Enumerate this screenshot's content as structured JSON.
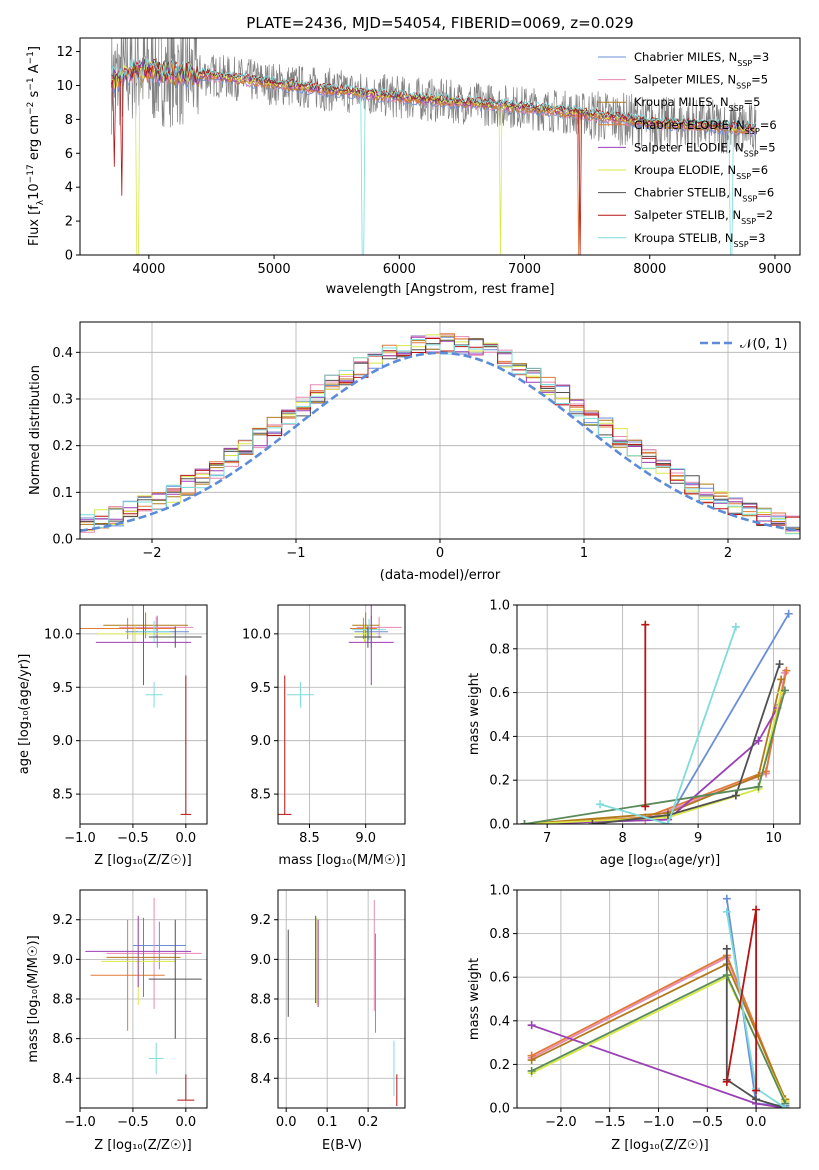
{
  "colors": {
    "chabrier_miles": "#6b8fd6",
    "salpeter_miles": "#e88ab4",
    "kroupa_miles": "#e07b39",
    "chabrier_elodie": "#e07b39",
    "salpeter_elodie": "#9b3fb5",
    "kroupa_elodie": "#d8e84a",
    "chabrier_stelib": "#505050",
    "salpeter_stelib": "#b81414",
    "kroupa_stelib": "#7fdcdc",
    "data": "#808080",
    "gauss": "#5b8bd9"
  },
  "chart_data": [
    {
      "id": "spectrum",
      "type": "line",
      "title": "PLATE=2436, MJD=54054, FIBERID=0069, z=0.029",
      "xlabel": "wavelength [Angstrom, rest frame]",
      "ylabel_parts": [
        "Flux [f",
        "λ",
        "10",
        "−17",
        " erg cm",
        "−2",
        " s",
        "−1",
        " A",
        "−1",
        "]"
      ],
      "xlim": [
        3450,
        9200
      ],
      "ylim": [
        0,
        12.8
      ],
      "xticks": [
        "4000",
        "5000",
        "6000",
        "7000",
        "8000",
        "9000"
      ],
      "yticks": [
        "0",
        "2",
        "4",
        "6",
        "8",
        "10",
        "12"
      ],
      "continuum": {
        "x": [
          3700,
          3800,
          3900,
          4000,
          4200,
          4500,
          5000,
          5500,
          6000,
          6500,
          7000,
          7500,
          8000,
          8500,
          8850
        ],
        "y": [
          10.3,
          10.6,
          11.0,
          10.8,
          10.7,
          10.6,
          10.1,
          9.7,
          9.3,
          9.0,
          8.7,
          8.3,
          7.8,
          7.6,
          7.4
        ]
      },
      "legend": [
        {
          "label": "Chabrier MILES, N",
          "sub": "SSP",
          "val": "=3",
          "color": "#6b8fd6"
        },
        {
          "label": "Salpeter MILES, N",
          "sub": "SSP",
          "val": "=5",
          "color": "#e88ab4"
        },
        {
          "label": "Kroupa MILES, N",
          "sub": "SSP",
          "val": "=5",
          "color": "#b07a1a"
        },
        {
          "label": "Chabrier ELODIE, N",
          "sub": "SSP",
          "val": "=6",
          "color": "#e07b39"
        },
        {
          "label": "Salpeter ELODIE, N",
          "sub": "SSP",
          "val": "=5",
          "color": "#9b3fb5"
        },
        {
          "label": "Kroupa ELODIE, N",
          "sub": "SSP",
          "val": "=6",
          "color": "#d8e84a"
        },
        {
          "label": "Chabrier STELIB, N",
          "sub": "SSP",
          "val": "=6",
          "color": "#505050"
        },
        {
          "label": "Salpeter STELIB, N",
          "sub": "SSP",
          "val": "=2",
          "color": "#b81414"
        },
        {
          "label": "Kroupa STELIB, N",
          "sub": "SSP",
          "val": "=3",
          "color": "#7fdcdc"
        }
      ]
    },
    {
      "id": "residuals",
      "type": "line",
      "xlabel": "(data-model)/error",
      "ylabel": "Normed distribution",
      "xlim": [
        -2.5,
        2.5
      ],
      "ylim": [
        0,
        0.465
      ],
      "xticks": [
        "−2",
        "−1",
        "0",
        "1",
        "2"
      ],
      "yticks": [
        "0.0",
        "0.1",
        "0.2",
        "0.3",
        "0.4"
      ],
      "legend_label": "𝒩(0, 1)"
    },
    {
      "id": "age_vs_Z",
      "type": "scatter",
      "xlabel": "Z [log₁₀(Z/Z☉)]",
      "ylabel": "age  [log₁₀(age/yr)]",
      "xlim": [
        -1.0,
        0.2
      ],
      "ylim": [
        8.22,
        10.27
      ],
      "xticks": [
        "−1.0",
        "−0.5",
        "0.0"
      ],
      "yticks": [
        "8.5",
        "9.0",
        "9.5",
        "10.0"
      ],
      "points": [
        {
          "x": -0.27,
          "y": 10.02,
          "xe": 0.3,
          "ye": 0.15,
          "c": "#6b8fd6"
        },
        {
          "x": -0.28,
          "y": 10.06,
          "xe": 0.35,
          "ye": 0.1,
          "c": "#e88ab4"
        },
        {
          "x": -0.55,
          "y": 10.05,
          "xe": 0.45,
          "ye": 0.1,
          "c": "#e07b39"
        },
        {
          "x": -0.38,
          "y": 10.08,
          "xe": 0.4,
          "ye": 0.12,
          "c": "#b07a1a"
        },
        {
          "x": -0.48,
          "y": 10.0,
          "xe": 0.35,
          "ye": 0.08,
          "c": "#d8e84a"
        },
        {
          "x": -0.3,
          "y": 10.02,
          "xe": 0.15,
          "ye": 0.1,
          "c": "#7fdcdc"
        },
        {
          "x": -0.4,
          "y": 9.92,
          "xe": 0.45,
          "ye": 0.4,
          "c": "#9b3fb5"
        },
        {
          "x": -0.1,
          "y": 9.97,
          "xe": 0.25,
          "ye": 0.1,
          "c": "#505050"
        },
        {
          "x": -0.3,
          "y": 9.43,
          "xe": 0.08,
          "ye": 0.12,
          "c": "#7fdcdc"
        },
        {
          "x": 0.0,
          "y": 8.31,
          "xe": 0.05,
          "ye": 0.0,
          "yup": 1.3,
          "c": "#b81414"
        }
      ]
    },
    {
      "id": "age_vs_mass",
      "type": "scatter",
      "xlabel": "mass [log₁₀(M/M☉)]",
      "ylabel": "",
      "xlim": [
        8.22,
        9.35
      ],
      "ylim": [
        8.22,
        10.27
      ],
      "xticks": [
        "8.5",
        "9.0"
      ],
      "yticks": [
        "8.5",
        "9.0",
        "9.5",
        "10.0"
      ],
      "points": [
        {
          "x": 9.05,
          "y": 10.02,
          "xe": 0.15,
          "ye": 0.15,
          "c": "#6b8fd6"
        },
        {
          "x": 9.12,
          "y": 10.06,
          "xe": 0.2,
          "ye": 0.1,
          "c": "#e88ab4"
        },
        {
          "x": 8.98,
          "y": 10.05,
          "xe": 0.12,
          "ye": 0.1,
          "c": "#e07b39"
        },
        {
          "x": 9.0,
          "y": 10.08,
          "xe": 0.12,
          "ye": 0.12,
          "c": "#b07a1a"
        },
        {
          "x": 8.99,
          "y": 10.0,
          "xe": 0.1,
          "ye": 0.08,
          "c": "#d8e84a"
        },
        {
          "x": 9.03,
          "y": 10.04,
          "xe": 0.15,
          "ye": 0.1,
          "c": "#7fdcdc"
        },
        {
          "x": 9.05,
          "y": 9.92,
          "xe": 0.2,
          "ye": 0.4,
          "c": "#9b3fb5"
        },
        {
          "x": 9.02,
          "y": 9.97,
          "xe": 0.12,
          "ye": 0.1,
          "c": "#505050"
        },
        {
          "x": 8.42,
          "y": 9.43,
          "xe": 0.12,
          "ye": 0.12,
          "c": "#7fdcdc"
        },
        {
          "x": 8.28,
          "y": 8.31,
          "xe": 0.06,
          "ye": 0.0,
          "yup": 1.3,
          "c": "#b81414"
        }
      ]
    },
    {
      "id": "massweight_vs_age",
      "type": "line",
      "xlabel": "age  [log₁₀(age/yr)]",
      "ylabel": "mass weight",
      "xlim": [
        6.6,
        10.35
      ],
      "ylim": [
        0,
        1.0
      ],
      "xticks": [
        "7",
        "8",
        "9",
        "10"
      ],
      "yticks": [
        "0.0",
        "0.2",
        "0.4",
        "0.6",
        "0.8",
        "1.0"
      ],
      "series": [
        {
          "c": "#6b8fd6",
          "x": [
            6.7,
            8.6,
            10.2
          ],
          "y": [
            0.0,
            0.02,
            0.96
          ]
        },
        {
          "c": "#e88ab4",
          "x": [
            6.7,
            8.3,
            9.9,
            10.15
          ],
          "y": [
            0.0,
            0.02,
            0.23,
            0.69
          ]
        },
        {
          "c": "#e07b39",
          "x": [
            6.7,
            8.3,
            9.9,
            10.17
          ],
          "y": [
            0.0,
            0.03,
            0.24,
            0.7
          ]
        },
        {
          "c": "#b07a1a",
          "x": [
            6.7,
            8.6,
            9.8,
            10.1
          ],
          "y": [
            0.0,
            0.05,
            0.22,
            0.66
          ]
        },
        {
          "c": "#9b3fb5",
          "x": [
            6.7,
            8.6,
            9.8,
            10.05
          ],
          "y": [
            0.0,
            0.02,
            0.38,
            0.53
          ]
        },
        {
          "c": "#d8e84a",
          "x": [
            6.7,
            8.6,
            9.8,
            10.1
          ],
          "y": [
            0.0,
            0.03,
            0.16,
            0.6
          ]
        },
        {
          "c": "#505050",
          "x": [
            7.6,
            8.6,
            9.5,
            10.08
          ],
          "y": [
            0.0,
            0.04,
            0.13,
            0.73
          ]
        },
        {
          "c": "#5a8a5a",
          "x": [
            6.7,
            9.8,
            10.15
          ],
          "y": [
            0.0,
            0.17,
            0.61
          ]
        },
        {
          "c": "#7fdcdc",
          "x": [
            7.7,
            8.6,
            9.5
          ],
          "y": [
            0.09,
            0.0,
            0.9
          ]
        },
        {
          "c": "#b81414",
          "x": [
            8.3,
            8.3
          ],
          "y": [
            0.08,
            0.91
          ]
        }
      ]
    },
    {
      "id": "mass_vs_Z",
      "type": "scatter",
      "xlabel": "Z [log₁₀(Z/Z☉)]",
      "ylabel": "mass [log₁₀(M/M☉)]",
      "xlim": [
        -1.0,
        0.2
      ],
      "ylim": [
        8.25,
        9.35
      ],
      "xticks": [
        "−1.0",
        "−0.5",
        "0.0"
      ],
      "yticks": [
        "8.4",
        "8.6",
        "8.8",
        "9.0",
        "9.2"
      ],
      "points": [
        {
          "x": -0.25,
          "y": 9.07,
          "xe": 0.25,
          "ye": 0.12,
          "c": "#6b8fd6"
        },
        {
          "x": -0.3,
          "y": 9.03,
          "xe": 0.45,
          "ye": 0.28,
          "c": "#e88ab4"
        },
        {
          "x": -0.55,
          "y": 8.92,
          "xe": 0.35,
          "ye": 0.28,
          "c": "#e07b39"
        },
        {
          "x": -0.4,
          "y": 9.01,
          "xe": 0.35,
          "ye": 0.2,
          "c": "#b07a1a"
        },
        {
          "x": -0.45,
          "y": 8.99,
          "xe": 0.35,
          "ye": 0.22,
          "c": "#d8e84a"
        },
        {
          "x": -0.45,
          "y": 9.04,
          "xe": 0.5,
          "ye": 0.18,
          "c": "#9b3fb5"
        },
        {
          "x": -0.1,
          "y": 8.9,
          "xe": 0.25,
          "ye": 0.3,
          "c": "#505050"
        },
        {
          "x": -0.28,
          "y": 8.5,
          "xe": 0.07,
          "ye": 0.08,
          "c": "#7fdcdc"
        },
        {
          "x": 0.0,
          "y": 8.29,
          "xe": 0.08,
          "ye": 0.0,
          "yup": 0.13,
          "c": "#b81414"
        }
      ]
    },
    {
      "id": "mass_vs_EBV",
      "type": "scatter",
      "xlabel": "E(B-V)",
      "ylabel": "",
      "xlim": [
        -0.02,
        0.29
      ],
      "ylim": [
        8.25,
        9.35
      ],
      "xticks": [
        "0.0",
        "0.1",
        "0.2"
      ],
      "yticks": [
        "8.4",
        "8.6",
        "8.8",
        "9.0",
        "9.2"
      ],
      "points": [
        {
          "x": 0.005,
          "y": 8.93,
          "xe": 0,
          "ye": 0.22,
          "c": "#505050"
        },
        {
          "x": 0.075,
          "y": 8.99,
          "xe": 0,
          "ye": 0.22,
          "c": "#d8e84a"
        },
        {
          "x": 0.072,
          "y": 9.0,
          "xe": 0,
          "ye": 0.22,
          "c": "#505050"
        },
        {
          "x": 0.078,
          "y": 8.98,
          "xe": 0,
          "ye": 0.22,
          "c": "#9b3fb5"
        },
        {
          "x": 0.215,
          "y": 9.02,
          "xe": 0,
          "ye": 0.28,
          "c": "#e88ab4"
        },
        {
          "x": 0.218,
          "y": 8.88,
          "xe": 0,
          "ye": 0.25,
          "c": "#e07b39"
        },
        {
          "x": 0.263,
          "y": 8.45,
          "xe": 0,
          "ye": 0.14,
          "c": "#7fdcdc"
        },
        {
          "x": 0.27,
          "y": 8.34,
          "xe": 0,
          "ye": 0.08,
          "c": "#b81414"
        }
      ]
    },
    {
      "id": "massweight_vs_Z",
      "type": "line",
      "xlabel": "Z [log₁₀(Z/Z☉)]",
      "ylabel": "mass weight",
      "xlim": [
        -2.45,
        0.45
      ],
      "ylim": [
        0,
        1.0
      ],
      "xticks": [
        "−2.0",
        "−1.5",
        "−1.0",
        "−0.5",
        "0.0"
      ],
      "yticks": [
        "0.0",
        "0.2",
        "0.4",
        "0.6",
        "0.8",
        "1.0"
      ],
      "series": [
        {
          "c": "#6b8fd6",
          "x": [
            -0.3,
            0.0,
            0.3
          ],
          "y": [
            0.96,
            0.02,
            0.01
          ]
        },
        {
          "c": "#e88ab4",
          "x": [
            -2.3,
            -0.3,
            0.3
          ],
          "y": [
            0.23,
            0.69,
            0.02
          ]
        },
        {
          "c": "#e07b39",
          "x": [
            -2.3,
            -0.3,
            0.3
          ],
          "y": [
            0.24,
            0.7,
            0.03
          ]
        },
        {
          "c": "#b07a1a",
          "x": [
            -2.3,
            -0.3,
            0.3
          ],
          "y": [
            0.22,
            0.66,
            0.04
          ]
        },
        {
          "c": "#9b3fb5",
          "x": [
            -2.3,
            0.0,
            0.3
          ],
          "y": [
            0.38,
            0.02,
            0.0
          ]
        },
        {
          "c": "#d8e84a",
          "x": [
            -2.3,
            -0.3,
            0.3
          ],
          "y": [
            0.16,
            0.6,
            0.03
          ]
        },
        {
          "c": "#505050",
          "x": [
            -0.3,
            -0.3,
            0.0,
            0.3
          ],
          "y": [
            0.73,
            0.13,
            0.04,
            0.0
          ]
        },
        {
          "c": "#5a8a5a",
          "x": [
            -2.3,
            -0.3,
            0.3
          ],
          "y": [
            0.17,
            0.61,
            0.02
          ]
        },
        {
          "c": "#7fdcdc",
          "x": [
            -0.3,
            0.0,
            0.3
          ],
          "y": [
            0.9,
            0.09,
            0.0
          ]
        },
        {
          "c": "#b81414",
          "x": [
            -0.3,
            0.0,
            0.0
          ],
          "y": [
            0.12,
            0.91,
            0.08
          ]
        }
      ]
    }
  ]
}
